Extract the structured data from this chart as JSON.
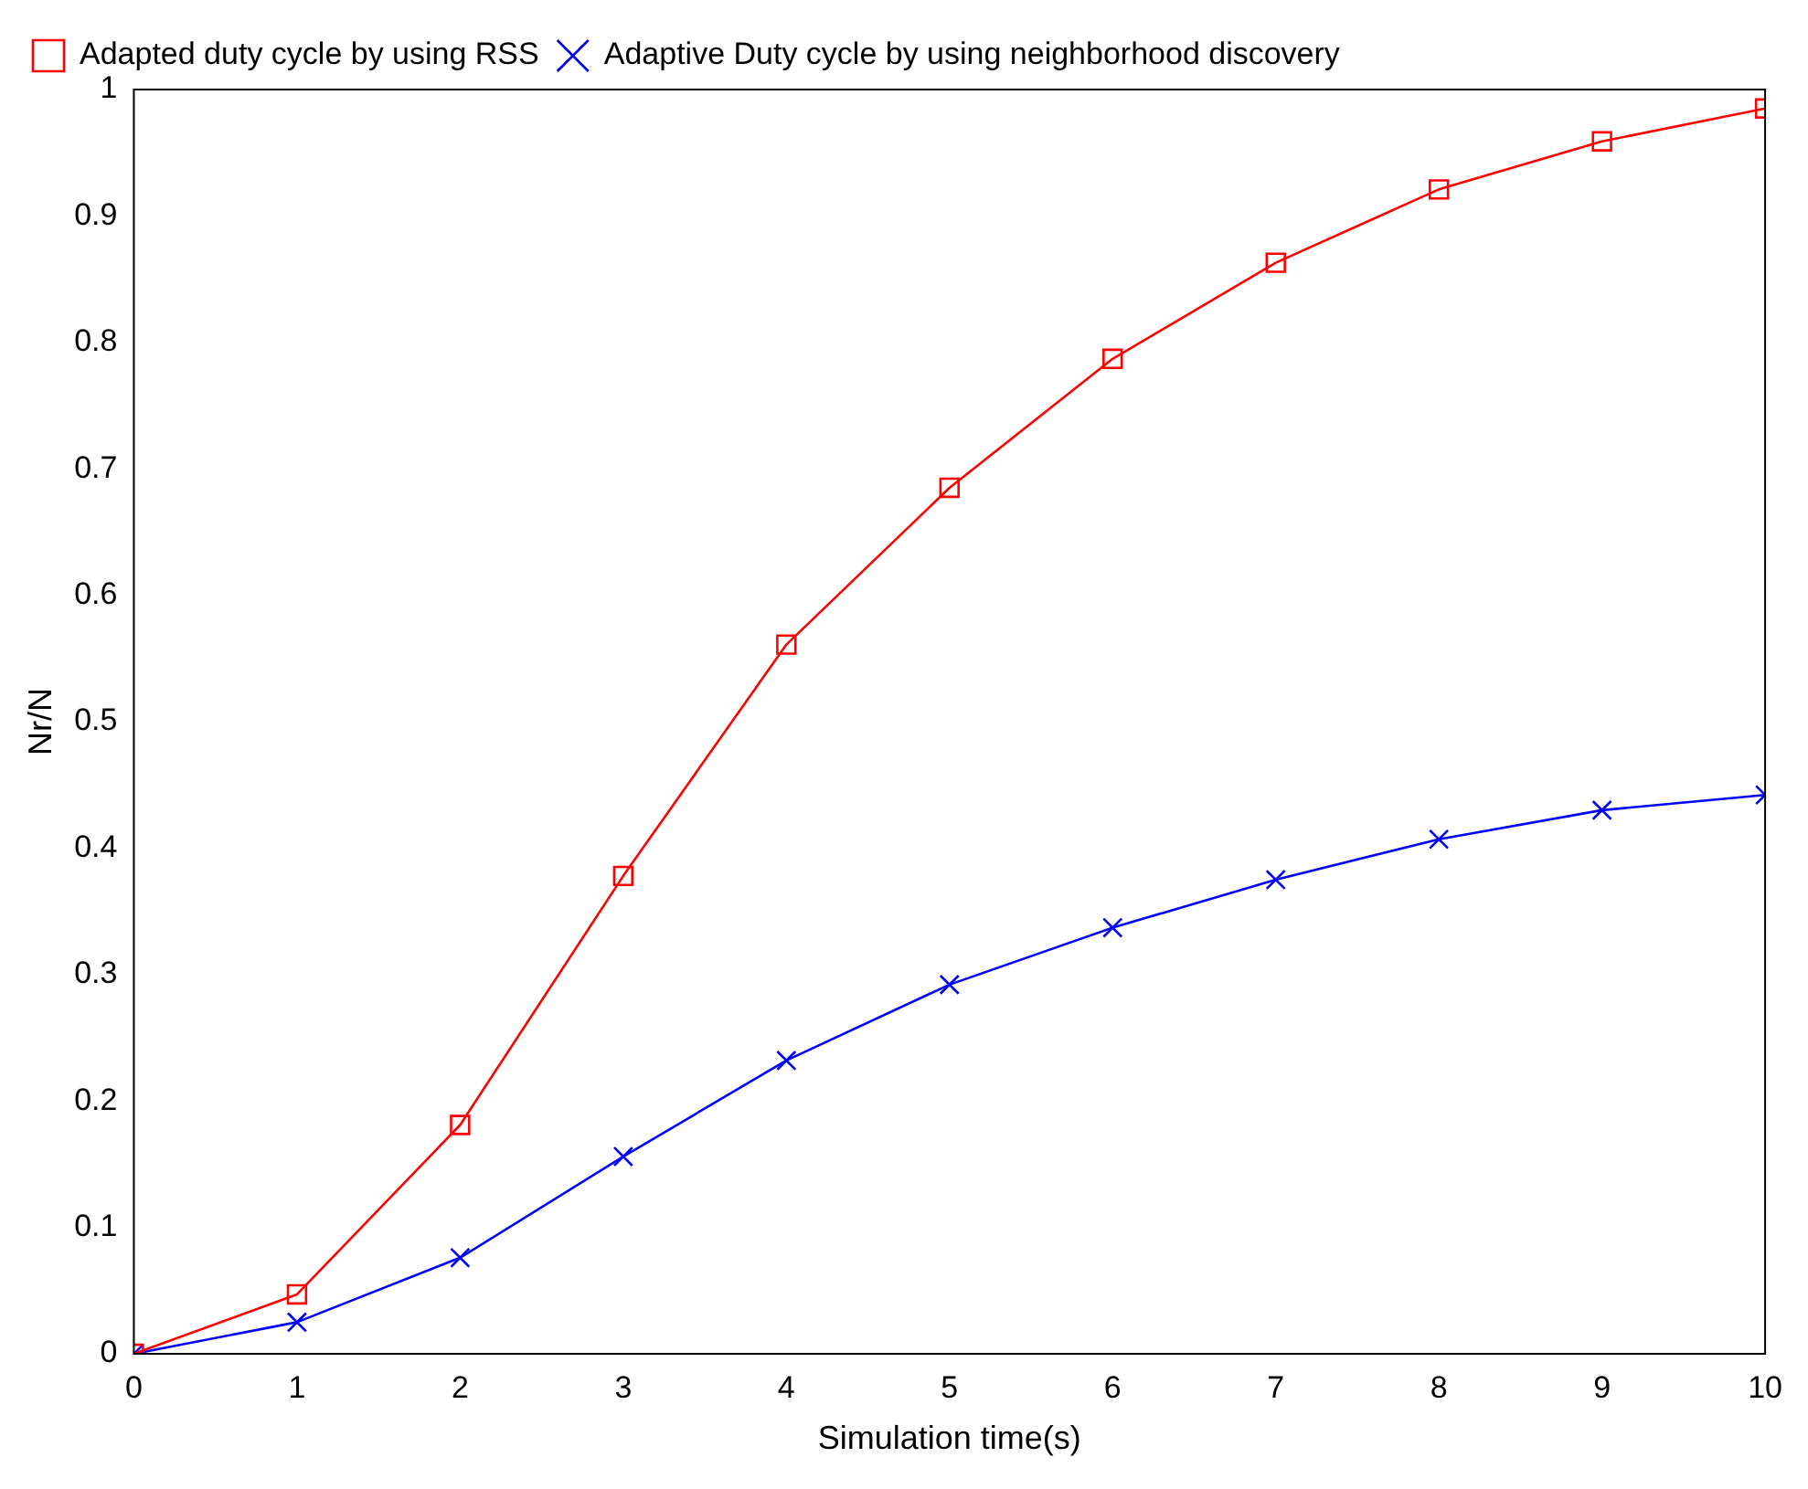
{
  "chart_data": {
    "type": "line",
    "xlabel": "Simulation time(s)",
    "ylabel": "Nr/N",
    "x": [
      0,
      1,
      2,
      3,
      4,
      5,
      6,
      7,
      8,
      9,
      10
    ],
    "series": [
      {
        "name": "Adapted duty cycle by using RSS",
        "color": "#ff0000",
        "marker": "square",
        "values": [
          0,
          0.047,
          0.181,
          0.378,
          0.561,
          0.685,
          0.787,
          0.863,
          0.921,
          0.959,
          0.985
        ]
      },
      {
        "name": "Adaptive Duty cycle by using neighborhood discovery",
        "color": "#0000ff",
        "marker": "cross",
        "values": [
          0,
          0.025,
          0.076,
          0.156,
          0.232,
          0.292,
          0.337,
          0.375,
          0.407,
          0.43,
          0.442
        ]
      }
    ],
    "xlim": [
      0,
      10
    ],
    "xticks": [
      0,
      1,
      2,
      3,
      4,
      5,
      6,
      7,
      8,
      9,
      10
    ],
    "ylim": [
      0,
      1
    ],
    "yticks": [
      0,
      0.1,
      0.2,
      0.3,
      0.4,
      0.5,
      0.6,
      0.7,
      0.8,
      0.9,
      1
    ],
    "grid": false,
    "legend": "top left",
    "line_style": "solid"
  }
}
